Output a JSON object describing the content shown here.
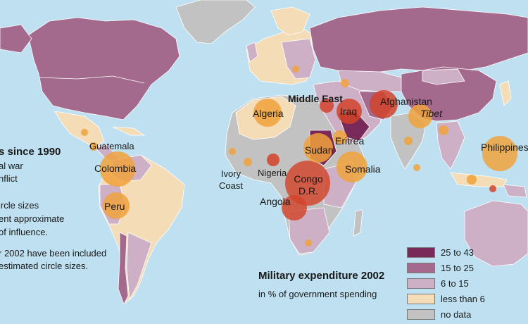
{
  "legend": {
    "title": "Military expenditure 2002",
    "subtitle": "in % of government spending",
    "items": [
      {
        "label": "25 to 43",
        "color": "#7a2a5a"
      },
      {
        "label": "15 to 25",
        "color": "#a36a8e"
      },
      {
        "label": "6 to 15",
        "color": "#cdb0c6"
      },
      {
        "label": "less than 6",
        "color": "#f3dcb6"
      },
      {
        "label": "no data",
        "color": "#c2c2c2"
      }
    ]
  },
  "conflicts_note": {
    "title": "s since 1990",
    "lines": [
      "al war",
      "nflict",
      "ircle sizes",
      "ent approximate",
      "of influence.",
      "r 2002 have been included",
      "estimated circle sizes."
    ]
  },
  "regions": {
    "guatemala": "Guatemala",
    "colombia": "Colombia",
    "peru": "Peru",
    "ivory_coast": "Ivory\nCoast",
    "algeria": "Algeria",
    "nigeria": "Nigeria",
    "congo": "Congo\nD.R.",
    "angola": "Angola",
    "sudan": "Sudan",
    "eritrea": "Eritrea",
    "somalia": "Somalia",
    "middle_east": "Middle East",
    "iraq": "Iraq",
    "afghanistan": "Afghanistan",
    "tibet": "Tibet",
    "philippines": "Philippines"
  },
  "colors": {
    "ocean": "#bfe0f0",
    "circle_orange": "#f0a23c",
    "circle_red": "#d2432a"
  }
}
